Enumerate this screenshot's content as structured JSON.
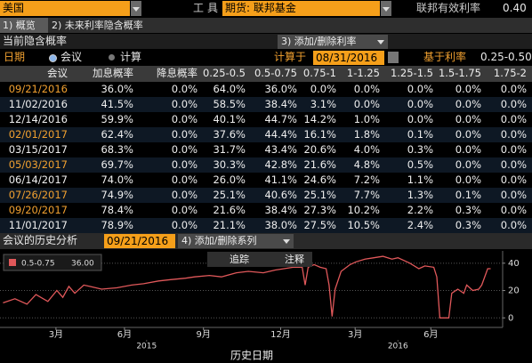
{
  "toolbar": {
    "market": "美国",
    "tool_label": "工具",
    "tool": "期货: 联邦基金",
    "rate_label": "联邦有效利率",
    "rate": "0.40"
  },
  "tabs": [
    "1) 概览",
    "2) 未来利率隐含概率"
  ],
  "section": {
    "title": "当前隐含概率",
    "button": "3) 添加/删除利率",
    "date_label": "日期",
    "radio": [
      "会议",
      "计算"
    ],
    "calc_label": "计算于",
    "calc_date": "08/31/2016",
    "base_label": "基于利率",
    "base_rate": "0.25-0.50"
  },
  "table": {
    "columns": [
      "会议",
      "加息概率",
      "降息概率",
      "0.25-0.5",
      "0.5-0.75",
      "0.75-1",
      "1-1.25",
      "1.25-1.5",
      "1.5-1.75",
      "1.75-2"
    ],
    "rows": [
      [
        "09/21/2016",
        "36.0%",
        "0.0%",
        "64.0%",
        "36.0%",
        "0.0%",
        "0.0%",
        "0.0%",
        "0.0%",
        "0.0%"
      ],
      [
        "11/02/2016",
        "41.5%",
        "0.0%",
        "58.5%",
        "38.4%",
        "3.1%",
        "0.0%",
        "0.0%",
        "0.0%",
        "0.0%"
      ],
      [
        "12/14/2016",
        "59.9%",
        "0.0%",
        "40.1%",
        "44.7%",
        "14.2%",
        "1.0%",
        "0.0%",
        "0.0%",
        "0.0%"
      ],
      [
        "02/01/2017",
        "62.4%",
        "0.0%",
        "37.6%",
        "44.4%",
        "16.1%",
        "1.8%",
        "0.1%",
        "0.0%",
        "0.0%"
      ],
      [
        "03/15/2017",
        "68.3%",
        "0.0%",
        "31.7%",
        "43.4%",
        "20.6%",
        "4.0%",
        "0.3%",
        "0.0%",
        "0.0%"
      ],
      [
        "05/03/2017",
        "69.7%",
        "0.0%",
        "30.3%",
        "42.8%",
        "21.6%",
        "4.8%",
        "0.5%",
        "0.0%",
        "0.0%"
      ],
      [
        "06/14/2017",
        "74.0%",
        "0.0%",
        "26.0%",
        "41.1%",
        "24.6%",
        "7.2%",
        "1.1%",
        "0.0%",
        "0.0%"
      ],
      [
        "07/26/2017",
        "74.9%",
        "0.0%",
        "25.1%",
        "40.6%",
        "25.1%",
        "7.7%",
        "1.3%",
        "0.1%",
        "0.0%"
      ],
      [
        "09/20/2017",
        "78.4%",
        "0.0%",
        "21.6%",
        "38.4%",
        "27.3%",
        "10.2%",
        "2.2%",
        "0.3%",
        "0.0%"
      ],
      [
        "11/01/2017",
        "78.9%",
        "0.0%",
        "21.1%",
        "38.0%",
        "27.5%",
        "10.5%",
        "2.4%",
        "0.3%",
        "0.0%"
      ]
    ]
  },
  "history": {
    "title": "会议的历史分析",
    "meeting": "09/21/2016",
    "button": "4) 添加/删除系列",
    "tools": [
      "追踪",
      "注释"
    ]
  },
  "chart_data": {
    "type": "line",
    "xlabel": "历史日期",
    "x": [
      2014.99,
      2015.03,
      2015.07,
      2015.1,
      2015.14,
      2015.17,
      2015.19,
      2015.21,
      2015.23,
      2015.26,
      2015.28,
      2015.32,
      2015.37,
      2015.42,
      2015.46,
      2015.51,
      2015.55,
      2015.6,
      2015.63,
      2015.68,
      2015.72,
      2015.77,
      2015.81,
      2015.86,
      2015.9,
      2015.96,
      2015.99,
      2016.0,
      2016.01,
      2016.03,
      2016.05,
      2016.07,
      2016.08,
      2016.09,
      2016.1,
      2016.12,
      2016.15,
      2016.17,
      2016.2,
      2016.23,
      2016.26,
      2016.29,
      2016.31,
      2016.35,
      2016.38,
      2016.4,
      2016.43,
      2016.44,
      2016.45,
      2016.47,
      2016.48,
      2016.49,
      2016.51,
      2016.53,
      2016.54,
      2016.56,
      2016.58,
      2016.59,
      2016.61,
      2016.62
    ],
    "series": [
      {
        "name": "0.5-0.75",
        "color": "#e0585a",
        "values": [
          11,
          14,
          10,
          17,
          12,
          20,
          15,
          23,
          18,
          24,
          23,
          21,
          22,
          24,
          25,
          27,
          28,
          29,
          30,
          31,
          30,
          33,
          34,
          33,
          35,
          37,
          37,
          24,
          37,
          39,
          37,
          36,
          24,
          1,
          21,
          34,
          39,
          41,
          43,
          44,
          45,
          43,
          44,
          40,
          36,
          38,
          37,
          30,
          0,
          0,
          0,
          18,
          21,
          18,
          24,
          20,
          21,
          24,
          36,
          36
        ]
      }
    ],
    "legend_value": "36.00",
    "xlim": [
      2014.98,
      2016.66
    ],
    "ylim": [
      -7,
      49
    ],
    "yticks": [
      0,
      20,
      40
    ],
    "xticks": [
      {
        "value": 2015.167,
        "label": "3月"
      },
      {
        "value": 2015.396,
        "label": "6月"
      },
      {
        "value": 2015.66,
        "label": "9月"
      },
      {
        "value": 2015.918,
        "label": "12月"
      },
      {
        "value": 2016.167,
        "label": "3月"
      },
      {
        "value": 2016.42,
        "label": "6月"
      }
    ],
    "year_labels": [
      {
        "value": 2015.47,
        "label": "2015"
      },
      {
        "value": 2016.31,
        "label": "2016"
      }
    ],
    "grid": true
  }
}
